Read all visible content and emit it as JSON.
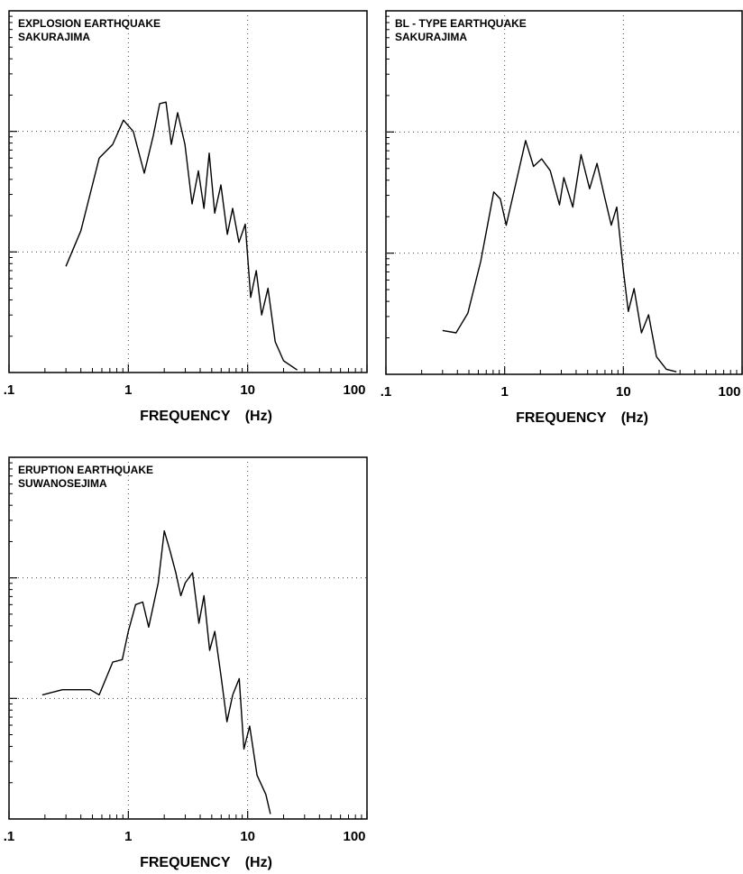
{
  "chart_data": [
    {
      "type": "line",
      "title": "EXPLOSION EARTHQUAKE",
      "subtitle": "SAKURAJIMA",
      "xlabel": "FREQUENCY (Hz)",
      "xlog": true,
      "ylog": true,
      "grid": true,
      "color": "#000000",
      "xlim": [
        0.1,
        100
      ],
      "ylim": [
        1,
        1000
      ],
      "xticks": [
        {
          "value": 0.1,
          "label": ".1"
        },
        1,
        10,
        100
      ],
      "yticks": [
        10,
        100
      ],
      "x": [
        0.3,
        0.4,
        0.57,
        0.74,
        0.91,
        1.1,
        1.36,
        1.62,
        1.83,
        2.07,
        2.29,
        2.59,
        2.98,
        3.42,
        3.86,
        4.3,
        4.76,
        5.29,
        5.97,
        6.75,
        7.48,
        8.45,
        9.55,
        10.6,
        11.8,
        13.1,
        14.8,
        17,
        20,
        26
      ],
      "values": [
        7.6,
        15,
        60,
        78,
        124,
        100,
        45,
        93,
        170,
        175,
        78,
        143,
        78,
        25,
        47,
        23,
        66,
        21,
        36,
        14,
        23,
        12,
        17,
        4.2,
        7,
        3,
        5,
        1.8,
        1.25,
        1.05
      ]
    },
    {
      "type": "line",
      "title": "BL - TYPE EARTHQUAKE",
      "subtitle": "SAKURAJIMA",
      "xlabel": "FREQUENCY (Hz)",
      "xlog": true,
      "ylog": true,
      "grid": true,
      "color": "#000000",
      "xlim": [
        0.1,
        100
      ],
      "ylim": [
        1,
        1000
      ],
      "xticks": [
        {
          "value": 0.1,
          "label": ".1"
        },
        1,
        10,
        100
      ],
      "yticks": [
        10,
        100
      ],
      "x": [
        0.3,
        0.39,
        0.49,
        0.63,
        0.81,
        0.92,
        1.03,
        1.23,
        1.5,
        1.75,
        2.05,
        2.42,
        2.9,
        3.15,
        3.75,
        4.4,
        5.2,
        6,
        6.9,
        7.9,
        8.8,
        10,
        11,
        12.3,
        14.2,
        16.3,
        19,
        23,
        28
      ],
      "values": [
        2.3,
        2.2,
        3.2,
        8.6,
        32,
        28,
        17,
        36,
        85,
        52,
        60,
        48,
        25,
        42,
        24,
        65,
        34,
        55,
        30,
        17,
        24,
        7.2,
        3.3,
        5.1,
        2.2,
        3.1,
        1.4,
        1.1,
        1.05
      ]
    },
    {
      "type": "line",
      "title": "ERUPTION EARTHQUAKE",
      "subtitle": "SUWANOSEJIMA",
      "xlabel": "FREQUENCY (Hz)",
      "xlog": true,
      "ylog": true,
      "grid": true,
      "color": "#000000",
      "xlim": [
        0.1,
        100
      ],
      "ylim": [
        1,
        1000
      ],
      "xticks": [
        {
          "value": 0.1,
          "label": ".1"
        },
        1,
        10,
        100
      ],
      "yticks": [
        10,
        100
      ],
      "x": [
        0.19,
        0.28,
        0.48,
        0.57,
        0.74,
        0.89,
        1.0,
        1.15,
        1.32,
        1.48,
        1.78,
        2.0,
        2.24,
        2.5,
        2.75,
        3.0,
        3.45,
        3.9,
        4.3,
        4.8,
        5.3,
        6,
        6.7,
        7.5,
        8.5,
        9.3,
        10.4,
        12,
        14.2,
        15.5
      ],
      "values": [
        10.7,
        11.8,
        11.8,
        10.7,
        20,
        21,
        36,
        60,
        63,
        39,
        91,
        245,
        166,
        110,
        71,
        91,
        110,
        42,
        71,
        25,
        36,
        15,
        6.4,
        10.7,
        14.6,
        3.8,
        5.9,
        2.3,
        1.6,
        1.1
      ]
    }
  ]
}
